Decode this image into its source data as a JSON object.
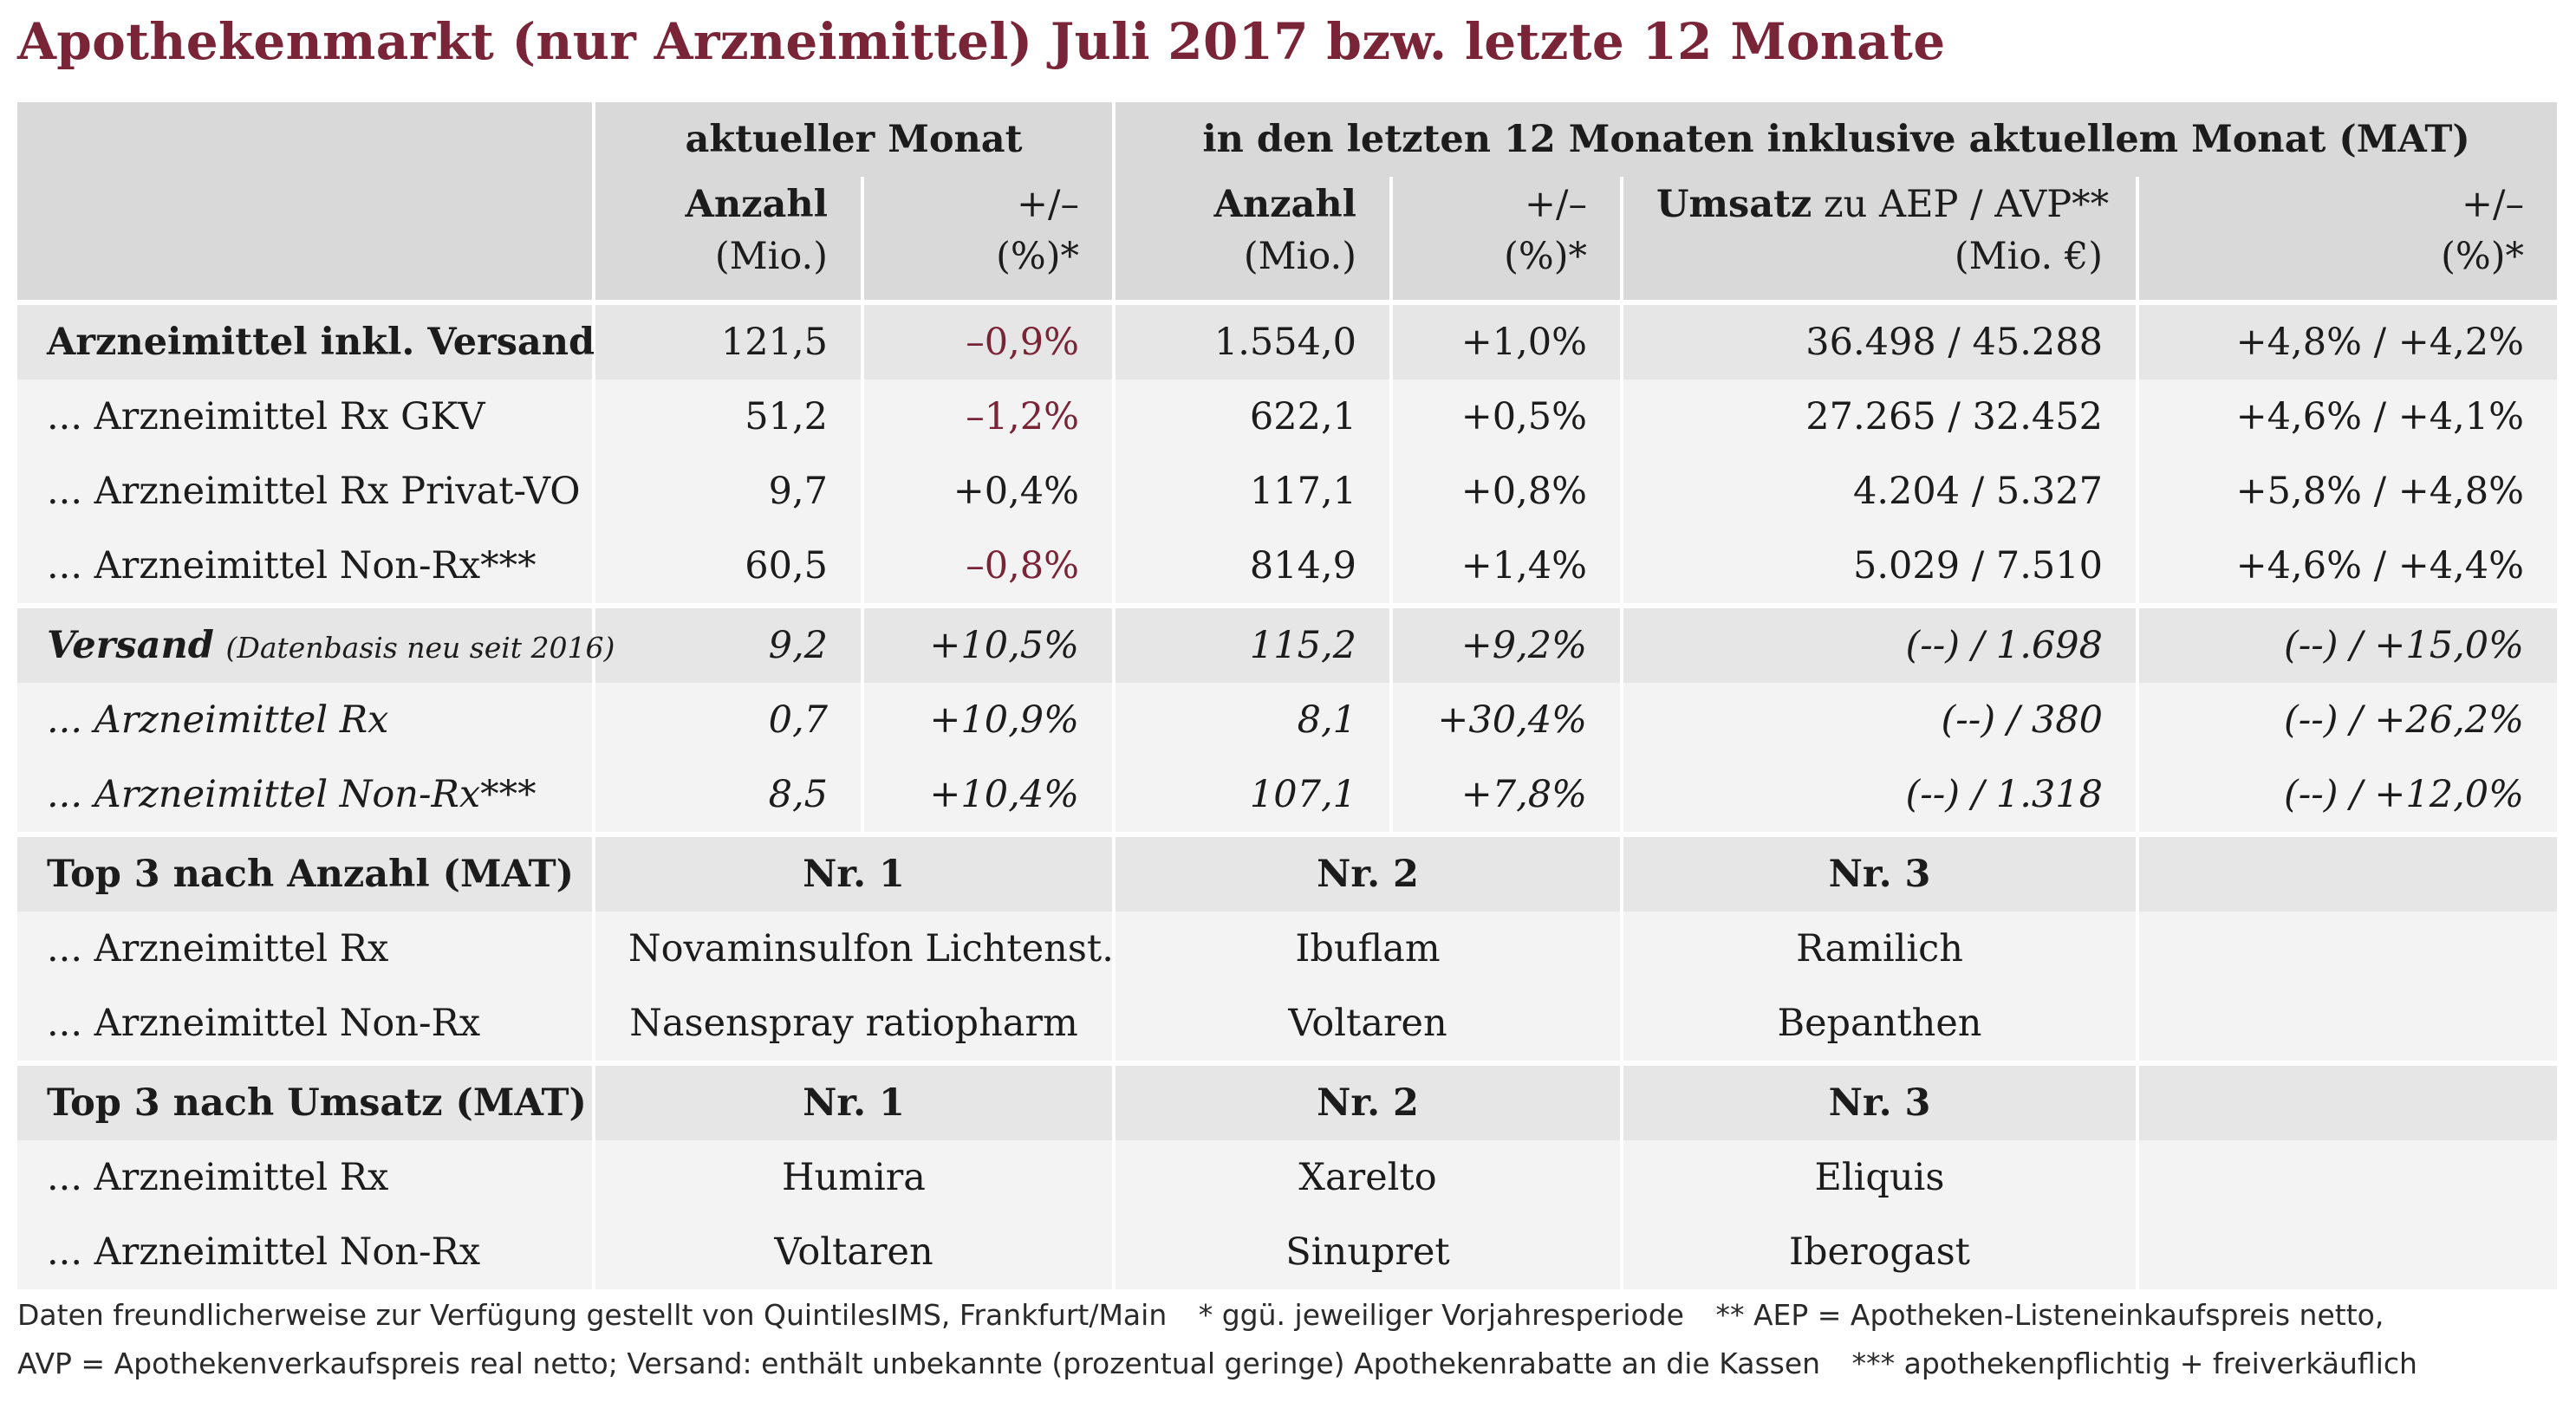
{
  "title": "Apothekenmarkt (nur Arzneimittel) Juli 2017 bzw. letzte 12 Monate",
  "header": {
    "group_current": "aktueller Monat",
    "group_mat": "in den letzten 12 Monaten inklusive aktuellem Monat (MAT)",
    "col_anzahl": "Anzahl",
    "col_anzahl_unit": "(Mio.)",
    "col_change": "+/–",
    "col_change_unit": "(%)*",
    "col_umsatz_bold": "Umsatz",
    "col_umsatz_rest": "zu AEP / AVP**",
    "col_umsatz_unit": "(Mio. €)"
  },
  "rows": [
    {
      "label": "Arzneimittel inkl. Versand",
      "a1": "121,5",
      "c1": "–0,9%",
      "a2": "1.554,0",
      "c2": "+1,0%",
      "u": "36.498 / 45.288",
      "uc": "+4,8% / +4,2%"
    },
    {
      "label": "... Arzneimittel Rx GKV",
      "a1": "51,2",
      "c1": "–1,2%",
      "a2": "622,1",
      "c2": "+0,5%",
      "u": "27.265 / 32.452",
      "uc": "+4,6% / +4,1%"
    },
    {
      "label": "... Arzneimittel Rx Privat-VO",
      "a1": "9,7",
      "c1": "+0,4%",
      "a2": "117,1",
      "c2": "+0,8%",
      "u": "4.204 / 5.327",
      "uc": "+5,8% / +4,8%"
    },
    {
      "label": "... Arzneimittel Non-Rx***",
      "a1": "60,5",
      "c1": "–0,8%",
      "a2": "814,9",
      "c2": "+1,4%",
      "u": "5.029 / 7.510",
      "uc": "+4,6% / +4,4%"
    },
    {
      "label": "Versand",
      "label_note": "(Datenbasis neu seit 2016)",
      "a1": "9,2",
      "c1": "+10,5%",
      "a2": "115,2",
      "c2": "+9,2%",
      "u": "(--) / 1.698",
      "uc": "(--) / +15,0%"
    },
    {
      "label": "... Arzneimittel Rx",
      "a1": "0,7",
      "c1": "+10,9%",
      "a2": "8,1",
      "c2": "+30,4%",
      "u": "(--) / 380",
      "uc": "(--) / +26,2%"
    },
    {
      "label": "... Arzneimittel Non-Rx***",
      "a1": "8,5",
      "c1": "+10,4%",
      "a2": "107,1",
      "c2": "+7,8%",
      "u": "(--) / 1.318",
      "uc": "(--) / +12,0%"
    }
  ],
  "top_anzahl": {
    "label": "Top 3 nach Anzahl (MAT)",
    "nr1": "Nr. 1",
    "nr2": "Nr. 2",
    "nr3": "Nr. 3",
    "rows": [
      {
        "label": "... Arzneimittel Rx",
        "p1": "Novaminsulfon Lichtenst.",
        "p2": "Ibuflam",
        "p3": "Ramilich"
      },
      {
        "label": "... Arzneimittel Non-Rx",
        "p1": "Nasenspray ratiopharm",
        "p2": "Voltaren",
        "p3": "Bepanthen"
      }
    ]
  },
  "top_umsatz": {
    "label": "Top 3 nach Umsatz (MAT)",
    "nr1": "Nr. 1",
    "nr2": "Nr. 2",
    "nr3": "Nr. 3",
    "rows": [
      {
        "label": "... Arzneimittel Rx",
        "p1": "Humira",
        "p2": "Xarelto",
        "p3": "Eliquis"
      },
      {
        "label": "... Arzneimittel Non-Rx",
        "p1": "Voltaren",
        "p2": "Sinupret",
        "p3": "Iberogast"
      }
    ]
  },
  "footnotes": {
    "source": "Daten freundlicherweise zur Verfügung gestellt von QuintilesIMS, Frankfurt/Main",
    "star1": "* ggü. jeweiliger Vorjahresperiode",
    "star2a": "** AEP = Apotheken-Listeneinkaufspreis netto,",
    "star2b": "AVP = Apothekenverkaufspreis real netto; Versand: enthält unbekannte (prozentual geringe) Apothekenrabatte an die Kassen",
    "star3": "*** apothekenpflichtig + freiverkäuflich"
  },
  "colors": {
    "title": "#7a2438",
    "negative": "#7a2438",
    "header_bg": "#d9d9d9",
    "row_dark": "#e6e6e6",
    "row_light": "#f3f3f3"
  }
}
